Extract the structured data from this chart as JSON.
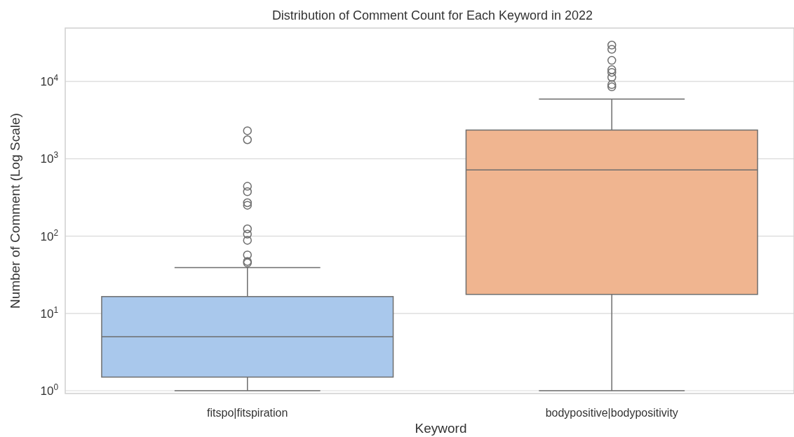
{
  "chart_data": {
    "type": "box",
    "title": "Distribution of Comment Count for Each Keyword in 2022",
    "xlabel": "Keyword",
    "ylabel": "Number of Comment (Log Scale)",
    "categories": [
      "fitspo|fitspiration",
      "bodypositive|bodypositivity"
    ],
    "colors": [
      "#a9c8ec",
      "#f0b590"
    ],
    "boxes": [
      {
        "low": 1,
        "q1": 1.5,
        "median": 5,
        "q3": 16.5,
        "high": 39,
        "outliers": [
          2300,
          1760,
          440,
          375,
          270,
          250,
          124,
          106,
          88,
          57,
          47,
          45
        ]
      },
      {
        "low": 1,
        "q1": 17.6,
        "median": 716,
        "q3": 2350,
        "high": 5900,
        "outliers": [
          29500,
          26000,
          18700,
          14200,
          13100,
          11300,
          9100,
          8500
        ]
      }
    ],
    "log": "y",
    "ylim": [
      0.92,
      49000
    ],
    "yticks": [
      {
        "value": 1,
        "label": "10$^{0}$"
      },
      {
        "value": 10,
        "label": "10$^{1}$"
      },
      {
        "value": 100,
        "label": "10$^{2}$"
      },
      {
        "value": 1000,
        "label": "10$^{3}$"
      },
      {
        "value": 10000,
        "label": "10$^{4}$"
      }
    ],
    "grid": "y"
  }
}
